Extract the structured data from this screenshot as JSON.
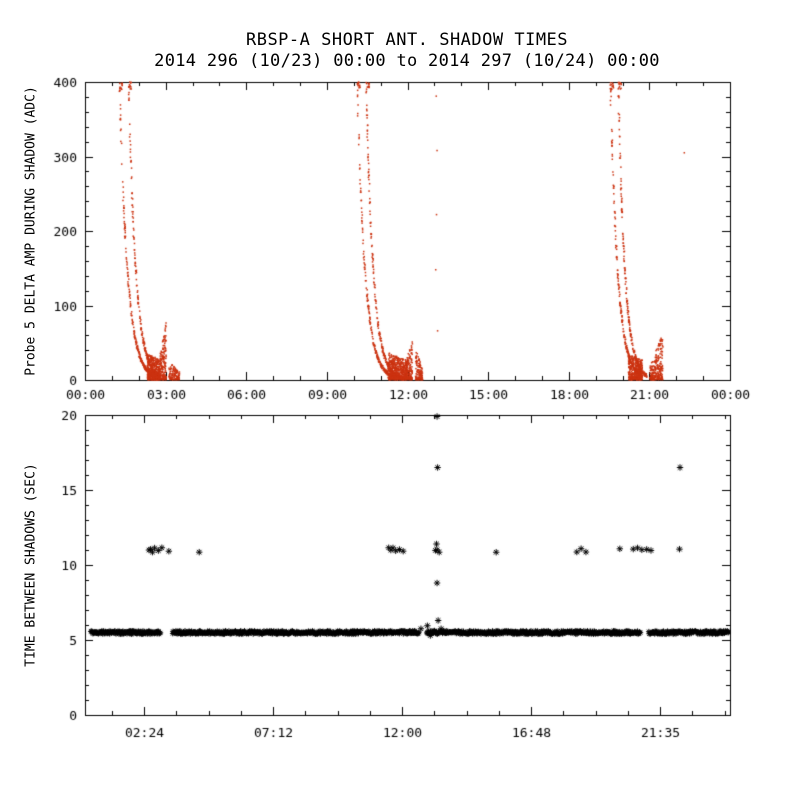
{
  "page": {
    "background": "#ffffff"
  },
  "chart_data": [
    {
      "type": "scatter",
      "panel": "top",
      "title": "RBSP-A SHORT ANT. SHADOW TIMES",
      "subtitle": "2014 296 (10/23) 00:00 to 2014 297 (10/24) 00:00",
      "xlabel": "",
      "ylabel": "Probe 5 DELTA AMP DURING SHADOW (ADC)",
      "xlim_hours": [
        0,
        24
      ],
      "ylim": [
        0,
        400
      ],
      "yticks": [
        0,
        100,
        200,
        300,
        400
      ],
      "y_minor_step": 20,
      "x_minor_step": 1,
      "xticks": [
        {
          "hour": 0,
          "label": "00:00"
        },
        {
          "hour": 3,
          "label": "03:00"
        },
        {
          "hour": 6,
          "label": "06:00"
        },
        {
          "hour": 9,
          "label": "09:00"
        },
        {
          "hour": 12,
          "label": "12:00"
        },
        {
          "hour": 15,
          "label": "15:00"
        },
        {
          "hour": 18,
          "label": "18:00"
        },
        {
          "hour": 21,
          "label": "21:00"
        },
        {
          "hour": 24,
          "label": "00:00"
        }
      ],
      "grid": false,
      "legend": "none",
      "marker": "dot",
      "marker_color": "#cc3311",
      "shadow_events": [
        {
          "traces": [
            {
              "t0": 1.28,
              "tau": 0.3,
              "span": 1.3,
              "n": 230
            },
            {
              "t0": 1.62,
              "tau": 0.27,
              "span": 1.18,
              "n": 230
            }
          ],
          "blobs": [
            {
              "t0": 2.32,
              "t1": 2.8,
              "a0": 34,
              "a1": 28,
              "n": 430
            },
            {
              "t0": 2.8,
              "t1": 3.02,
              "a0": 36,
              "a1": 78,
              "n": 170
            },
            {
              "t0": 3.12,
              "t1": 3.52,
              "a0": 24,
              "a1": 10,
              "n": 120
            }
          ]
        },
        {
          "traces": [
            {
              "t0": 10.12,
              "tau": 0.3,
              "span": 1.4,
              "n": 240
            },
            {
              "t0": 10.46,
              "tau": 0.27,
              "span": 1.28,
              "n": 240
            }
          ],
          "blobs": [
            {
              "t0": 11.28,
              "t1": 11.98,
              "a0": 36,
              "a1": 26,
              "n": 520
            },
            {
              "t0": 11.95,
              "t1": 12.18,
              "a0": 28,
              "a1": 52,
              "n": 150
            },
            {
              "t0": 12.3,
              "t1": 12.56,
              "a0": 46,
              "a1": 12,
              "n": 130
            }
          ]
        },
        {
          "traces": [
            {
              "t0": 19.55,
              "tau": 0.27,
              "span": 1.18,
              "n": 230
            },
            {
              "t0": 19.84,
              "tau": 0.25,
              "span": 1.06,
              "n": 230
            }
          ],
          "blobs": [
            {
              "t0": 20.22,
              "t1": 20.74,
              "a0": 34,
              "a1": 26,
              "n": 400
            },
            {
              "t0": 21.02,
              "t1": 21.5,
              "a0": 18,
              "a1": 62,
              "n": 260
            }
          ]
        }
      ],
      "sparse_points": [
        {
          "t": 13.07,
          "a": 381
        },
        {
          "t": 13.1,
          "a": 308
        },
        {
          "t": 13.08,
          "a": 222
        },
        {
          "t": 13.05,
          "a": 148
        },
        {
          "t": 13.12,
          "a": 66
        },
        {
          "t": 22.3,
          "a": 305
        }
      ]
    },
    {
      "type": "scatter",
      "panel": "bottom",
      "title": "",
      "xlabel": "",
      "ylabel": "TIME BETWEEN SHADOWS (SEC)",
      "xlim_hours": [
        0.2,
        24.2
      ],
      "ylim": [
        0,
        20
      ],
      "yticks": [
        0,
        5,
        10,
        15,
        20
      ],
      "y_minor_step": 1,
      "x_minor_step": 1.2,
      "xticks": [
        {
          "hour": 2.4,
          "label": "02:24"
        },
        {
          "hour": 7.2,
          "label": "07:12"
        },
        {
          "hour": 12.0,
          "label": "12:00"
        },
        {
          "hour": 16.8,
          "label": "16:48"
        },
        {
          "hour": 21.5833,
          "label": "21:35"
        }
      ],
      "grid": false,
      "legend": "none",
      "marker": "asterisk",
      "marker_color": "#000000",
      "baseline": {
        "sec": 5.5,
        "start_hour": 0.42,
        "end_hour": 24.15,
        "step_hour": 0.02,
        "jitter_sec": 0.22,
        "gaps": [
          [
            3.02,
            3.46
          ],
          [
            12.62,
            12.9
          ],
          [
            20.86,
            21.16
          ]
        ]
      },
      "interval_11s": {
        "sec": 11.0,
        "jitter_sec": 0.3,
        "hours": [
          2.58,
          2.64,
          2.71,
          2.79,
          2.93,
          3.06,
          3.32,
          4.45,
          11.5,
          11.58,
          11.66,
          11.76,
          11.9,
          12.04,
          13.24,
          13.3,
          13.38,
          15.5,
          18.5,
          18.66,
          18.84,
          20.1,
          20.6,
          20.76,
          20.92,
          21.1,
          21.26,
          22.32
        ]
      },
      "outliers": [
        {
          "hour": 13.3,
          "sec": 19.9
        },
        {
          "hour": 13.32,
          "sec": 16.5
        },
        {
          "hour": 22.34,
          "sec": 16.5
        },
        {
          "hour": 13.28,
          "sec": 11.4
        },
        {
          "hour": 13.3,
          "sec": 8.8
        },
        {
          "hour": 13.34,
          "sec": 6.3
        },
        {
          "hour": 12.94,
          "sec": 5.95
        },
        {
          "hour": 13.05,
          "sec": 5.3
        },
        {
          "hour": 13.2,
          "sec": 5.6
        },
        {
          "hour": 13.45,
          "sec": 5.75
        },
        {
          "hour": 13.55,
          "sec": 5.6
        },
        {
          "hour": 12.7,
          "sec": 5.75
        }
      ]
    }
  ]
}
